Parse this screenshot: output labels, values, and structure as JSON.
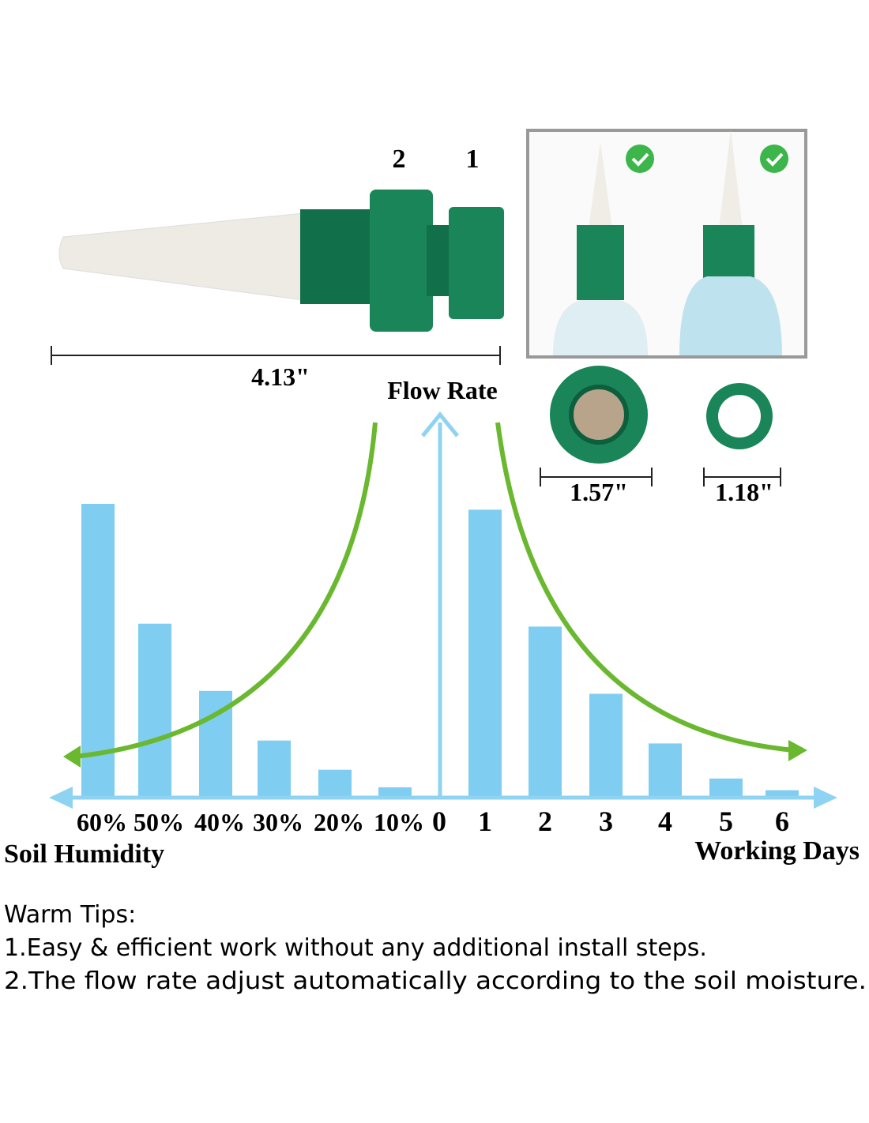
{
  "product": {
    "part_labels": [
      "2",
      "1"
    ],
    "length": "4.13\"",
    "ring_sizes": [
      "1.57\"",
      "1.18\""
    ]
  },
  "y_label": "Flow Rate",
  "origin_label": "0",
  "chart_data": [
    {
      "type": "bar",
      "x_label": "Soil Humidity",
      "categories": [
        "60%",
        "50%",
        "40%",
        "30%",
        "20%",
        "10%"
      ],
      "values": [
        100,
        59,
        36,
        19,
        9,
        3
      ],
      "color": "#7fcdf0",
      "ylim": [
        0,
        100
      ]
    },
    {
      "type": "bar",
      "x_label": "Working Days",
      "categories": [
        "1",
        "2",
        "3",
        "4",
        "5",
        "6"
      ],
      "values": [
        98,
        58,
        35,
        18,
        6,
        2
      ],
      "color": "#7fcdf0",
      "ylim": [
        0,
        100
      ]
    }
  ],
  "tips": {
    "title": "Warm Tips:",
    "lines": [
      "1.Easy & efficient work without any additional install steps.",
      "2.The flow rate adjust automatically according to the soil moisture."
    ]
  }
}
